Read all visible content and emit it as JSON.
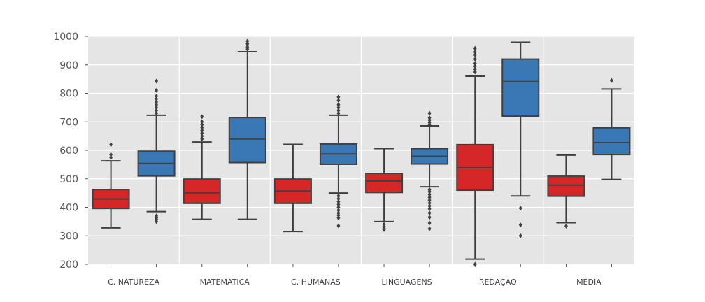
{
  "chart_data": {
    "type": "box",
    "title": "",
    "xlabel": "",
    "ylabel": "",
    "ylim": [
      200,
      1000
    ],
    "yticks": [
      200,
      300,
      400,
      500,
      600,
      700,
      800,
      900,
      1000
    ],
    "grid": true,
    "legend": "none",
    "categories": [
      "C. NATUREZA",
      "MATEMATICA",
      "C. HUMANAS",
      "LINGUAGENS",
      "REDAÇÃO",
      "MÉDIA"
    ],
    "colors": [
      "#d62728",
      "#3a78b5"
    ],
    "series": [
      {
        "color": "#d62728",
        "boxes": [
          {
            "whislo": 328,
            "q1": 396,
            "med": 429,
            "q3": 462,
            "whishi": 563,
            "fliers": [
              575,
              585,
              620
            ]
          },
          {
            "whislo": 358,
            "q1": 414,
            "med": 451,
            "q3": 499,
            "whishi": 629,
            "fliers": [
              640,
              650,
              660,
              670,
              680,
              690,
              700,
              718
            ]
          },
          {
            "whislo": 315,
            "q1": 414,
            "med": 457,
            "q3": 499,
            "whishi": 621,
            "fliers": []
          },
          {
            "whislo": 350,
            "q1": 452,
            "med": 492,
            "q3": 519,
            "whishi": 606,
            "fliers": [
              322,
              327,
              333,
              340
            ]
          },
          {
            "whislo": 218,
            "q1": 460,
            "med": 539,
            "q3": 620,
            "whishi": 860,
            "fliers": [
              200,
              875,
              885,
              895,
              905,
              920,
              935,
              945,
              958
            ]
          },
          {
            "whislo": 346,
            "q1": 439,
            "med": 478,
            "q3": 509,
            "whishi": 583,
            "fliers": [
              334
            ]
          }
        ]
      },
      {
        "color": "#3a78b5",
        "boxes": [
          {
            "whislo": 385,
            "q1": 510,
            "med": 554,
            "q3": 597,
            "whishi": 723,
            "fliers": [
              350,
              357,
              363,
              370,
              730,
              740,
              750,
              760,
              770,
              780,
              790,
              810,
              843
            ]
          },
          {
            "whislo": 358,
            "q1": 557,
            "med": 640,
            "q3": 715,
            "whishi": 946,
            "fliers": [
              955,
              962,
              970,
              975,
              983
            ]
          },
          {
            "whislo": 450,
            "q1": 551,
            "med": 587,
            "q3": 622,
            "whishi": 723,
            "fliers": [
              335,
              363,
              372,
              380,
              390,
              400,
              410,
              420,
              430,
              440,
              730,
              740,
              750,
              760,
              775,
              787
            ]
          },
          {
            "whislo": 472,
            "q1": 552,
            "med": 579,
            "q3": 606,
            "whishi": 686,
            "fliers": [
              325,
              345,
              365,
              380,
              395,
              405,
              415,
              425,
              435,
              445,
              455,
              462,
              690,
              698,
              706,
              714,
              730
            ]
          },
          {
            "whislo": 440,
            "q1": 720,
            "med": 841,
            "q3": 920,
            "whishi": 979,
            "fliers": [
              300,
              338,
              397
            ]
          },
          {
            "whislo": 498,
            "q1": 585,
            "med": 627,
            "q3": 679,
            "whishi": 815,
            "fliers": [
              845
            ]
          }
        ]
      }
    ]
  }
}
